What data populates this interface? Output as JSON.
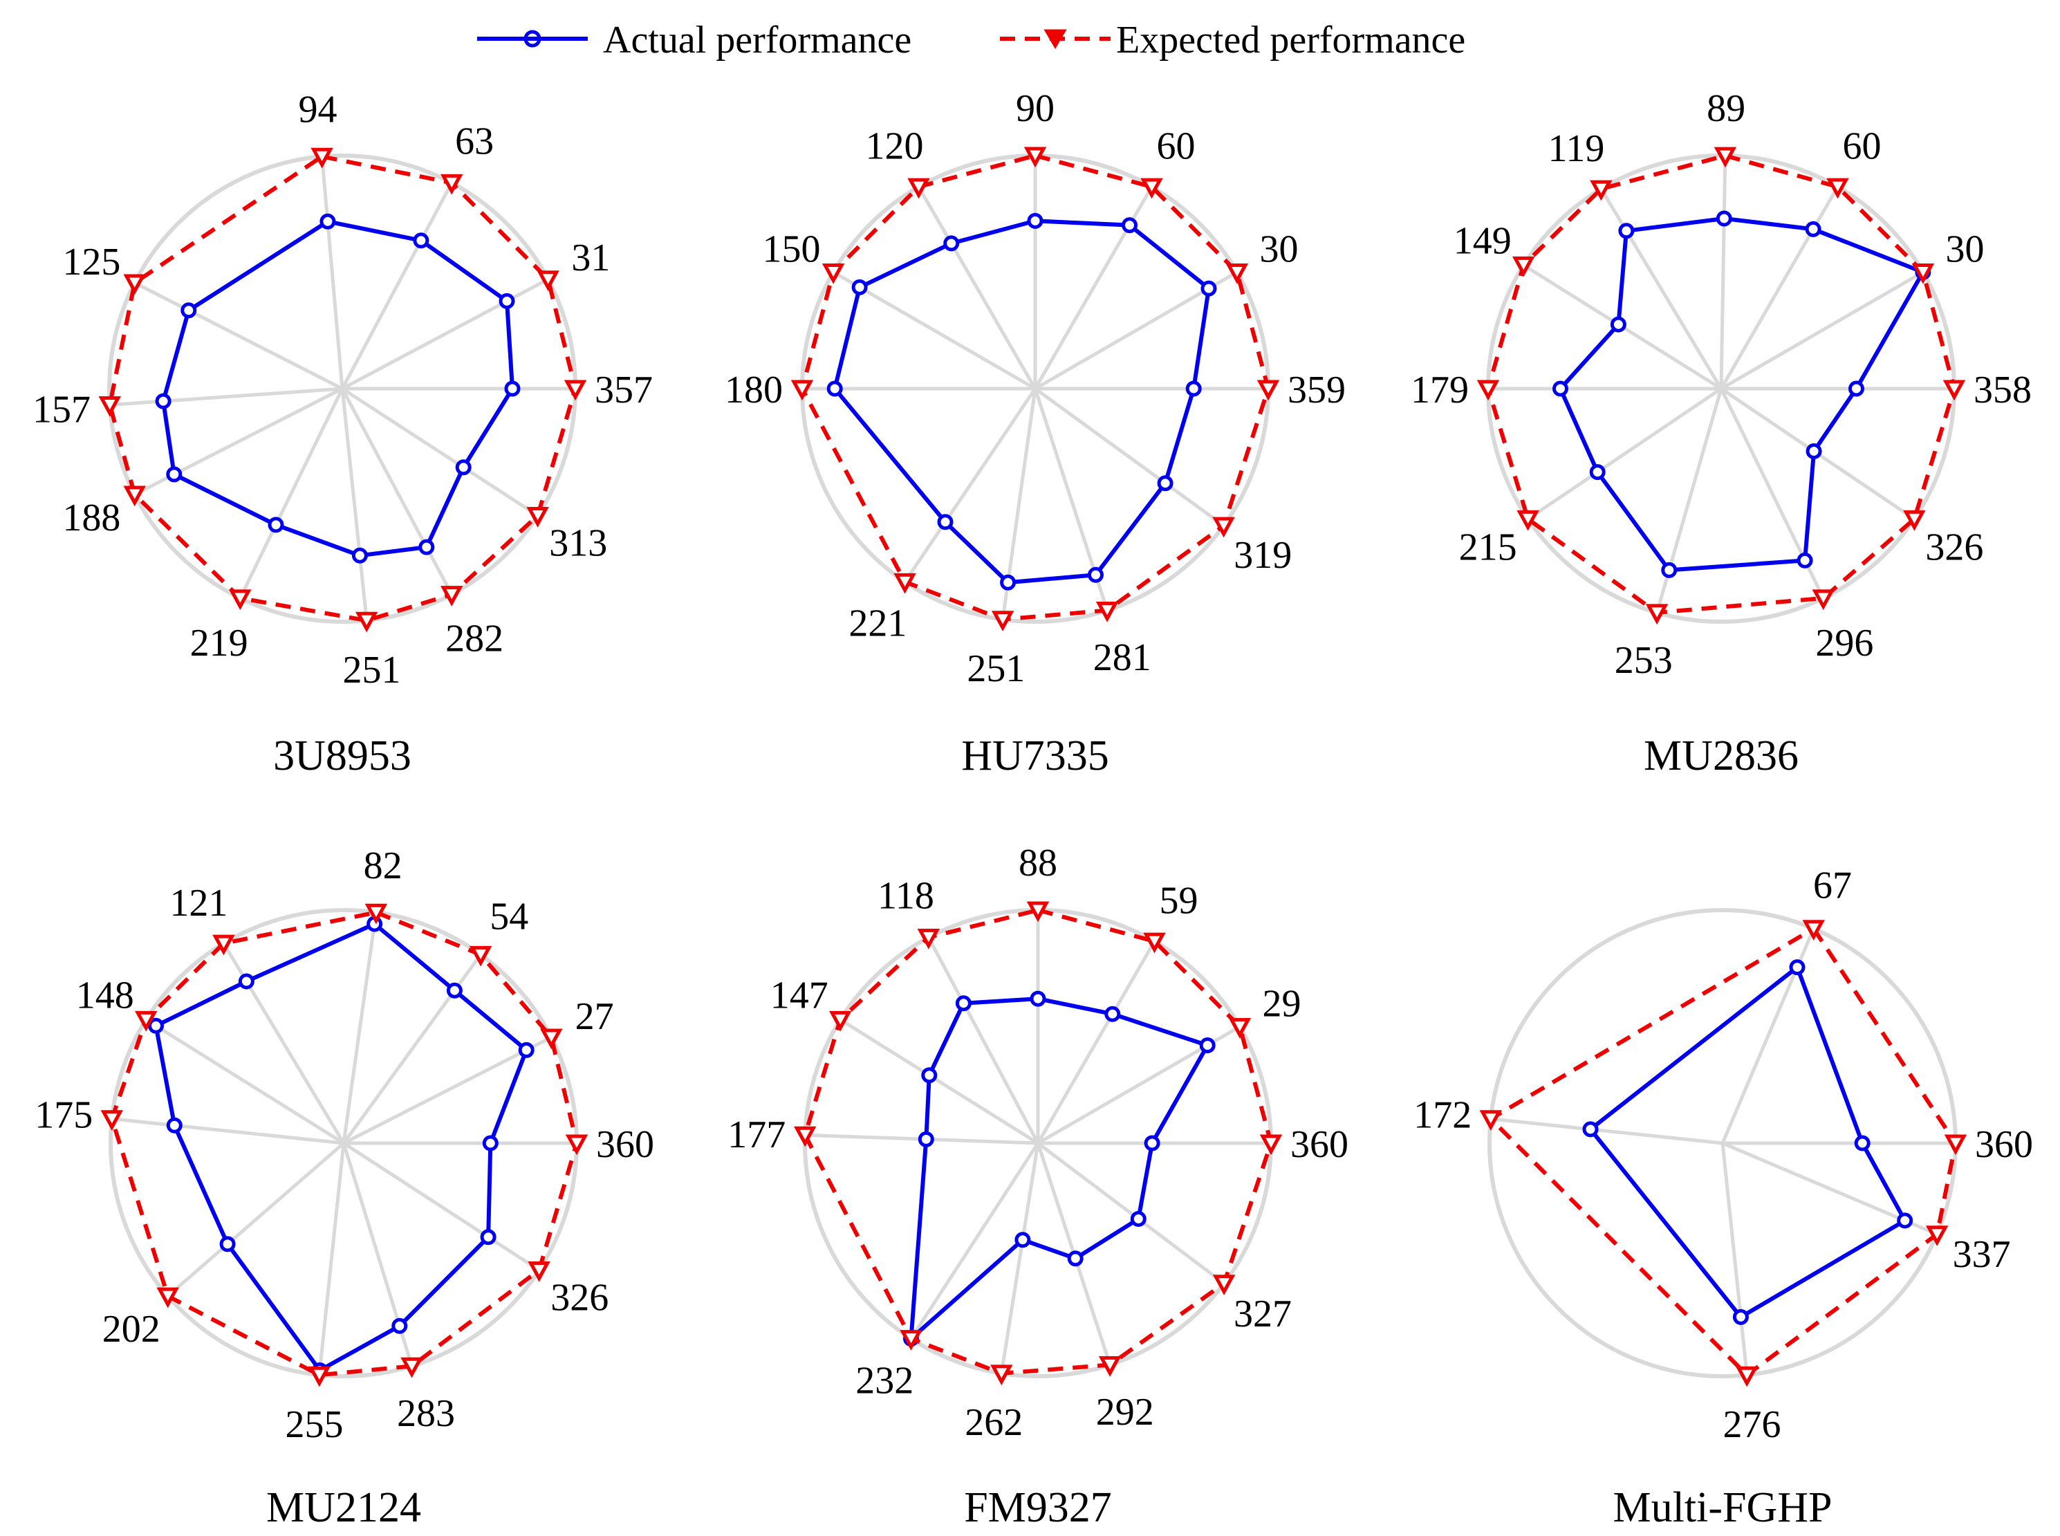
{
  "legend": {
    "actual": "Actual performance",
    "expected": "Expected performance"
  },
  "colors": {
    "actual": "#0000ee",
    "expected": "#ee0000",
    "grid": "#d9d9d9"
  },
  "chart_data": [
    {
      "type": "radar",
      "title": "3U8953",
      "axes": [
        "94",
        "63",
        "31",
        "357",
        "313",
        "282",
        "251",
        "219",
        "188",
        "157",
        "125"
      ],
      "series": [
        {
          "name": "Actual performance",
          "values": [
            0.72,
            0.72,
            0.8,
            0.73,
            0.62,
            0.77,
            0.72,
            0.65,
            0.81,
            0.77,
            0.74
          ]
        },
        {
          "name": "Expected performance",
          "values": [
            1,
            1,
            1,
            1,
            1,
            1,
            1,
            1,
            1,
            1,
            1
          ]
        }
      ]
    },
    {
      "type": "radar",
      "title": "HU7335",
      "axes": [
        "90",
        "60",
        "30",
        "359",
        "319",
        "281",
        "251",
        "221",
        "180",
        "150",
        "120"
      ],
      "series": [
        {
          "name": "Actual performance",
          "values": [
            0.72,
            0.81,
            0.86,
            0.68,
            0.69,
            0.84,
            0.84,
            0.69,
            0.86,
            0.87,
            0.72
          ]
        },
        {
          "name": "Expected performance",
          "values": [
            1,
            1,
            1,
            1,
            1,
            1,
            1,
            1,
            1,
            1,
            1
          ]
        }
      ]
    },
    {
      "type": "radar",
      "title": "MU2836",
      "axes": [
        "89",
        "60",
        "30",
        "358",
        "326",
        "296",
        "253",
        "215",
        "179",
        "149",
        "119"
      ],
      "series": [
        {
          "name": "Actual performance",
          "values": [
            0.73,
            0.79,
            1.0,
            0.58,
            0.48,
            0.82,
            0.81,
            0.64,
            0.69,
            0.52,
            0.79
          ]
        },
        {
          "name": "Expected performance",
          "values": [
            1,
            1,
            1,
            1,
            1,
            1,
            1,
            1,
            1,
            1,
            1
          ]
        }
      ]
    },
    {
      "type": "radar",
      "title": "MU2124",
      "axes": [
        "82",
        "54",
        "27",
        "360",
        "326",
        "283",
        "255",
        "202",
        "175",
        "148",
        "121"
      ],
      "series": [
        {
          "name": "Actual performance",
          "values": [
            0.95,
            0.81,
            0.88,
            0.63,
            0.74,
            0.82,
            0.98,
            0.66,
            0.73,
            0.95,
            0.81
          ]
        },
        {
          "name": "Expected performance",
          "values": [
            1,
            1,
            1,
            1,
            1,
            1,
            1,
            1,
            1,
            1,
            1
          ]
        }
      ]
    },
    {
      "type": "radar",
      "title": "FM9327",
      "axes": [
        "88",
        "59",
        "29",
        "360",
        "327",
        "292",
        "262",
        "232",
        "177",
        "147",
        "118"
      ],
      "series": [
        {
          "name": "Actual performance",
          "values": [
            0.62,
            0.64,
            0.84,
            0.49,
            0.54,
            0.52,
            0.42,
            1.0,
            0.48,
            0.55,
            0.68
          ]
        },
        {
          "name": "Expected performance",
          "values": [
            1,
            1,
            1,
            1,
            1,
            1,
            1,
            1,
            1,
            1,
            1
          ]
        }
      ]
    },
    {
      "type": "radar",
      "title": "Multi-FGHP",
      "axes": [
        "67",
        "360",
        "337",
        "276",
        "172"
      ],
      "series": [
        {
          "name": "Actual performance",
          "values": [
            0.82,
            0.6,
            0.85,
            0.75,
            0.57
          ]
        },
        {
          "name": "Expected performance",
          "values": [
            1,
            1,
            1,
            1,
            1
          ]
        }
      ]
    }
  ]
}
